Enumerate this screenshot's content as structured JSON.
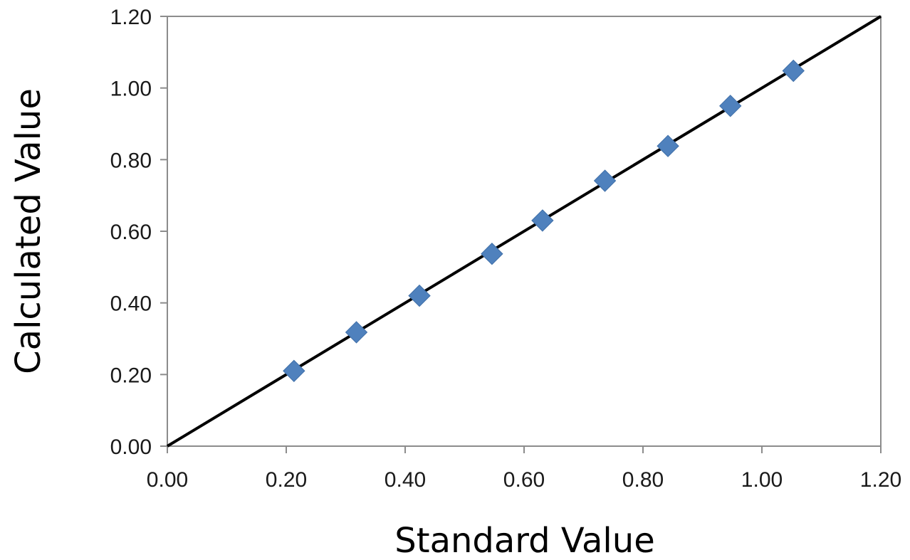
{
  "chart_data": {
    "type": "scatter",
    "title": "",
    "xlabel": "Standard Value",
    "ylabel": "Calculated Value",
    "xlim": [
      0,
      1.2
    ],
    "ylim": [
      0,
      1.2
    ],
    "x_ticks": [
      "0.00",
      "0.20",
      "0.40",
      "0.60",
      "0.80",
      "1.00",
      "1.20"
    ],
    "y_ticks": [
      "0.00",
      "0.20",
      "0.40",
      "0.60",
      "0.80",
      "1.00",
      "1.20"
    ],
    "grid": false,
    "legend": "none",
    "series": [
      {
        "marker": "diamond",
        "color": "#4F81BD",
        "points": [
          {
            "x": 0.213,
            "y": 0.21
          },
          {
            "x": 0.318,
            "y": 0.318
          },
          {
            "x": 0.424,
            "y": 0.42
          },
          {
            "x": 0.546,
            "y": 0.537
          },
          {
            "x": 0.631,
            "y": 0.63
          },
          {
            "x": 0.736,
            "y": 0.741
          },
          {
            "x": 0.842,
            "y": 0.838
          },
          {
            "x": 0.947,
            "y": 0.95
          },
          {
            "x": 1.053,
            "y": 1.048
          }
        ]
      }
    ],
    "reference_line": {
      "from": [
        0,
        0
      ],
      "to": [
        1.2,
        1.2
      ],
      "color": "#000000"
    }
  }
}
